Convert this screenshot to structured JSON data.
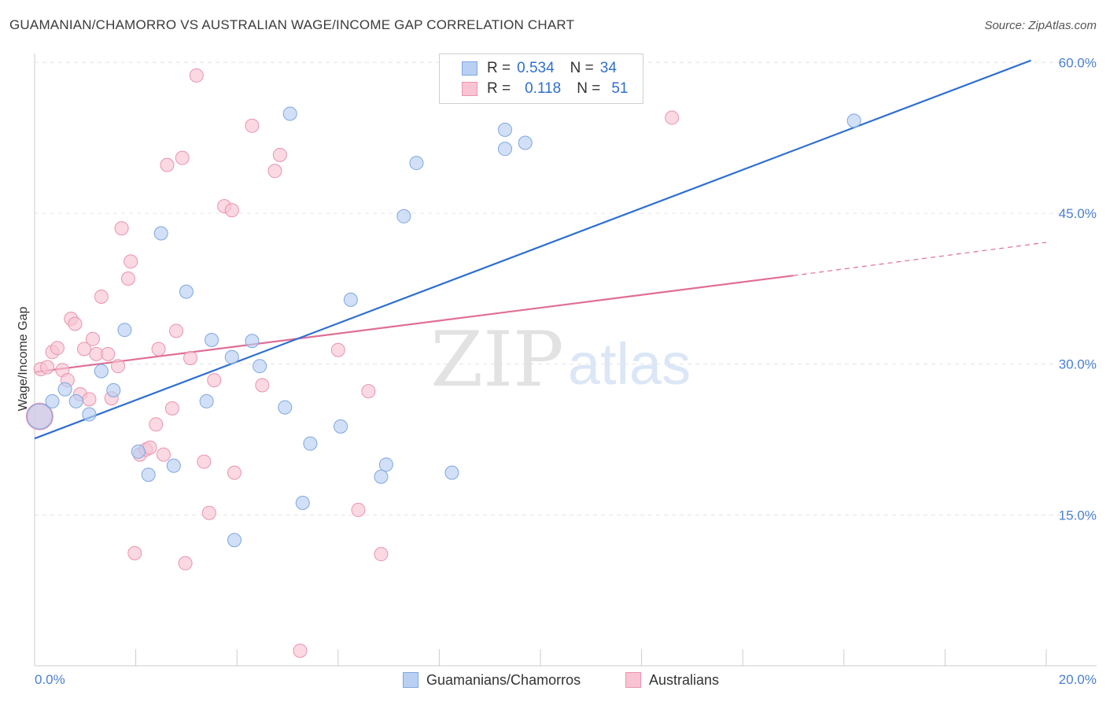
{
  "title": "GUAMANIAN/CHAMORRO VS AUSTRALIAN WAGE/INCOME GAP CORRELATION CHART",
  "source": "Source: ZipAtlas.com",
  "watermark": {
    "zip": "ZIP",
    "atlas": "atlas"
  },
  "legend": {
    "series1": {
      "r_label": "R =",
      "r_value": "0.534",
      "n_label": "N =",
      "n_value": "34"
    },
    "series2": {
      "r_label": "R =",
      "r_value": "0.118",
      "n_label": "N =",
      "n_value": "51"
    }
  },
  "bottom_legend": {
    "series1": "Guamanians/Chamorros",
    "series2": "Australians"
  },
  "colors": {
    "blue_fill": "#b9d0f3",
    "blue_stroke": "#7fa6e0",
    "blue_line": "#2f6fd0",
    "pink_fill": "#f8c4d3",
    "pink_stroke": "#eb93ae",
    "pink_line": "#e06e95",
    "tick": "#4a7fd4",
    "grid": "#e4e4e4"
  },
  "chart_data": {
    "type": "scatter",
    "title": "GUAMANIAN/CHAMORRO VS AUSTRALIAN WAGE/INCOME GAP CORRELATION CHART",
    "xlabel": "",
    "ylabel": "Wage/Income Gap",
    "xlim": [
      0,
      20
    ],
    "ylim": [
      0,
      61.5
    ],
    "x_tick_labels": [
      "0.0%",
      "20.0%"
    ],
    "y_ticks": [
      15,
      30,
      45,
      60
    ],
    "y_tick_labels": [
      "15.0%",
      "30.0%",
      "45.0%",
      "60.0%"
    ],
    "grid": true,
    "series": [
      {
        "name": "Guamanians/Chamorros",
        "r": 0.534,
        "n": 34,
        "trend": {
          "x": [
            0,
            19.7
          ],
          "y": [
            22.6,
            60.2
          ]
        },
        "points": [
          {
            "x": 0.1,
            "y": 24.8,
            "big": true
          },
          {
            "x": 0.35,
            "y": 26.3
          },
          {
            "x": 0.6,
            "y": 27.5
          },
          {
            "x": 0.82,
            "y": 26.3
          },
          {
            "x": 1.08,
            "y": 25.0
          },
          {
            "x": 1.32,
            "y": 29.3
          },
          {
            "x": 1.56,
            "y": 27.4
          },
          {
            "x": 1.78,
            "y": 33.4
          },
          {
            "x": 2.05,
            "y": 21.3
          },
          {
            "x": 2.25,
            "y": 19.0
          },
          {
            "x": 2.5,
            "y": 43.0
          },
          {
            "x": 2.75,
            "y": 19.9
          },
          {
            "x": 3.0,
            "y": 37.2
          },
          {
            "x": 3.4,
            "y": 26.3
          },
          {
            "x": 3.5,
            "y": 32.4
          },
          {
            "x": 3.9,
            "y": 30.7
          },
          {
            "x": 3.95,
            "y": 12.5
          },
          {
            "x": 4.3,
            "y": 32.3
          },
          {
            "x": 4.45,
            "y": 29.8
          },
          {
            "x": 4.95,
            "y": 25.7
          },
          {
            "x": 5.05,
            "y": 54.9
          },
          {
            "x": 5.3,
            "y": 16.2
          },
          {
            "x": 5.45,
            "y": 22.1
          },
          {
            "x": 6.05,
            "y": 23.8
          },
          {
            "x": 6.25,
            "y": 36.4
          },
          {
            "x": 6.85,
            "y": 18.8
          },
          {
            "x": 6.95,
            "y": 20.0
          },
          {
            "x": 7.3,
            "y": 44.7
          },
          {
            "x": 7.55,
            "y": 50.0
          },
          {
            "x": 8.25,
            "y": 19.2
          },
          {
            "x": 9.3,
            "y": 53.3
          },
          {
            "x": 9.3,
            "y": 51.4
          },
          {
            "x": 9.7,
            "y": 52.0
          },
          {
            "x": 16.2,
            "y": 54.2
          }
        ]
      },
      {
        "name": "Australians",
        "r": 0.118,
        "n": 51,
        "trend": {
          "x": [
            0,
            15.0
          ],
          "y": [
            29.2,
            38.8
          ]
        },
        "trend_dashed": {
          "x": [
            15.0,
            20.0
          ],
          "y": [
            38.8,
            42.1
          ]
        },
        "points": [
          {
            "x": 0.1,
            "y": 24.8,
            "big": true
          },
          {
            "x": 0.12,
            "y": 29.5
          },
          {
            "x": 0.25,
            "y": 29.7
          },
          {
            "x": 0.35,
            "y": 31.2
          },
          {
            "x": 0.45,
            "y": 31.6
          },
          {
            "x": 0.55,
            "y": 29.4
          },
          {
            "x": 0.65,
            "y": 28.4
          },
          {
            "x": 0.72,
            "y": 34.5
          },
          {
            "x": 0.8,
            "y": 34.0
          },
          {
            "x": 0.9,
            "y": 27.0
          },
          {
            "x": 0.98,
            "y": 31.5
          },
          {
            "x": 1.08,
            "y": 26.5
          },
          {
            "x": 1.15,
            "y": 32.5
          },
          {
            "x": 1.22,
            "y": 31.0
          },
          {
            "x": 1.32,
            "y": 36.7
          },
          {
            "x": 1.45,
            "y": 31.0
          },
          {
            "x": 1.52,
            "y": 26.6
          },
          {
            "x": 1.65,
            "y": 29.8
          },
          {
            "x": 1.72,
            "y": 43.5
          },
          {
            "x": 1.85,
            "y": 38.5
          },
          {
            "x": 1.9,
            "y": 40.2
          },
          {
            "x": 1.98,
            "y": 11.2
          },
          {
            "x": 2.08,
            "y": 21.0
          },
          {
            "x": 2.2,
            "y": 21.5
          },
          {
            "x": 2.28,
            "y": 21.7
          },
          {
            "x": 2.4,
            "y": 24.0
          },
          {
            "x": 2.45,
            "y": 31.5
          },
          {
            "x": 2.55,
            "y": 21.0
          },
          {
            "x": 2.62,
            "y": 49.8
          },
          {
            "x": 2.72,
            "y": 25.6
          },
          {
            "x": 2.8,
            "y": 33.3
          },
          {
            "x": 2.92,
            "y": 50.5
          },
          {
            "x": 2.98,
            "y": 10.2
          },
          {
            "x": 3.08,
            "y": 30.6
          },
          {
            "x": 3.2,
            "y": 58.7
          },
          {
            "x": 3.35,
            "y": 20.3
          },
          {
            "x": 3.45,
            "y": 15.2
          },
          {
            "x": 3.55,
            "y": 28.4
          },
          {
            "x": 3.75,
            "y": 45.7
          },
          {
            "x": 3.9,
            "y": 45.3
          },
          {
            "x": 3.95,
            "y": 19.2
          },
          {
            "x": 4.3,
            "y": 53.7
          },
          {
            "x": 4.5,
            "y": 27.9
          },
          {
            "x": 4.75,
            "y": 49.2
          },
          {
            "x": 4.85,
            "y": 50.8
          },
          {
            "x": 5.25,
            "y": 1.5
          },
          {
            "x": 6.0,
            "y": 31.4
          },
          {
            "x": 6.4,
            "y": 15.5
          },
          {
            "x": 6.6,
            "y": 27.3
          },
          {
            "x": 6.85,
            "y": 11.1
          },
          {
            "x": 12.6,
            "y": 54.5
          }
        ]
      }
    ]
  }
}
